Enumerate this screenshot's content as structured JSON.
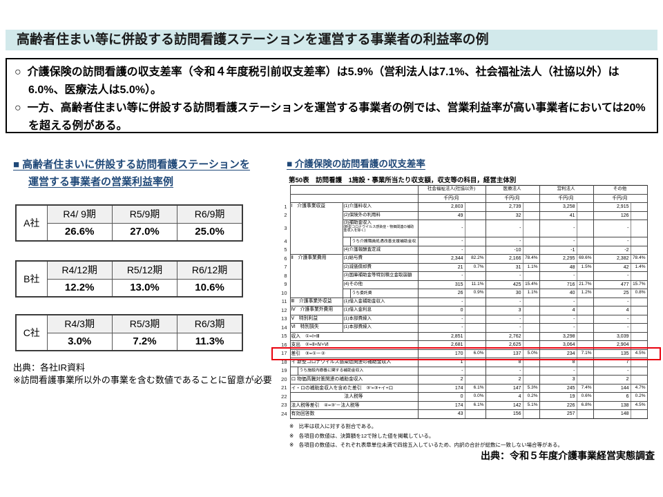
{
  "colors": {
    "title_bar_bg": "#d2e9eb",
    "heading_blue": "#1f4878",
    "highlight_red": "#e8000d"
  },
  "slide": {
    "title": "高齢者住まい等に併設する訪問看護ステーションを運営する事業者の利益率の例",
    "bullet_marker": "○",
    "bullets": [
      "介護保険の訪問看護の収支差率（令和４年度税引前収支差率）は5.9%（営利法人は7.1%、社会福祉法人（社協以外）は6.0%、医療法人は5.0%）。",
      "一方、高齢者住まい等に併設する訪問看護ステーションを運営する事業者の例では、営業利益率が高い事業者においては20%を超える例がある。"
    ]
  },
  "left_panel": {
    "heading_line1": "■ 高齢者住まいに併設する訪問看護ステーションを",
    "heading_line2": "運営する事業者の営業利益率例",
    "tables": [
      {
        "company": "A社",
        "periods": [
          "R4/ 9期",
          "R5/9期",
          "R6/9期"
        ],
        "values": [
          "26.6%",
          "27.0%",
          "25.0%"
        ]
      },
      {
        "company": "B社",
        "periods": [
          "R4/12期",
          "R5/12期",
          "R6/12期"
        ],
        "values": [
          "12.2%",
          "13.0%",
          "10.6%"
        ]
      },
      {
        "company": "C社",
        "periods": [
          "R4/3期",
          "R5/3期",
          "R6/3期"
        ],
        "values": [
          "3.0%",
          "7.2%",
          "11.3%"
        ]
      }
    ],
    "source": "出典：各社IR資料",
    "note": "※訪問看護事業所以外の事業を含む数値であることに留意が必要"
  },
  "right_panel": {
    "heading": "■ 介護保険の訪問看護の収支差率",
    "table_title": "第50表　訪問看護　1施設・事業所当たり収支額，収支等の科目，経営主体別",
    "entity_headers": [
      "社会福祉法人(社協以外)",
      "医療法人",
      "営利法人",
      "その他"
    ],
    "unit_label": "千円/月",
    "highlight_row": 17,
    "rows": [
      {
        "n": 1,
        "cat": "Ⅰ　介護事業収益",
        "catspan": 5,
        "item": "(1)介護料収入",
        "c": [
          [
            "2,803",
            ""
          ],
          [
            "2,739",
            ""
          ],
          [
            "3,258",
            ""
          ],
          [
            "2,915",
            ""
          ]
        ]
      },
      {
        "n": 2,
        "item": "(2)保険外の利用料",
        "c": [
          [
            "49",
            ""
          ],
          [
            "32",
            ""
          ],
          [
            "41",
            ""
          ],
          [
            "126",
            ""
          ]
        ]
      },
      {
        "n": 3,
        "item": "(3)補助金収入",
        "note": "(新型コロナウイルス感染症・物価関連の補助金収入を除く)",
        "tall": true,
        "c": [
          [
            "-",
            ""
          ],
          [
            "-",
            ""
          ],
          [
            "-",
            ""
          ],
          [
            "-",
            ""
          ]
        ]
      },
      {
        "n": 4,
        "item": "うち介護職員処遇改善支援補助金収入",
        "sub": true,
        "c": [
          [
            "-",
            ""
          ],
          [
            "-",
            ""
          ],
          [
            "-",
            ""
          ],
          [
            "-",
            ""
          ]
        ]
      },
      {
        "n": 5,
        "item": "(4)介護報酬査定減",
        "c": [
          [
            "-",
            ""
          ],
          [
            "-10",
            ""
          ],
          [
            "-1",
            ""
          ],
          [
            "-2",
            ""
          ]
        ]
      },
      {
        "n": 6,
        "cat": "Ⅱ　介護事業費用",
        "catspan": 5,
        "item": "(1)給与費",
        "sec": true,
        "c": [
          [
            "2,344",
            "82.2%"
          ],
          [
            "2,166",
            "78.4%"
          ],
          [
            "2,295",
            "69.6%"
          ],
          [
            "2,382",
            "78.4%"
          ]
        ]
      },
      {
        "n": 7,
        "item": "(2)減価償却費",
        "c": [
          [
            "21",
            "0.7%"
          ],
          [
            "31",
            "1.1%"
          ],
          [
            "48",
            "1.5%"
          ],
          [
            "42",
            "1.4%"
          ]
        ]
      },
      {
        "n": 8,
        "item": "(3)国庫補助金等特別積立金取崩額",
        "c": [
          [
            "-",
            ""
          ],
          [
            "-",
            ""
          ],
          [
            "-",
            ""
          ],
          [
            "-",
            ""
          ]
        ]
      },
      {
        "n": 9,
        "item": "(4)その他",
        "c": [
          [
            "315",
            "11.1%"
          ],
          [
            "425",
            "15.4%"
          ],
          [
            "716",
            "21.7%"
          ],
          [
            "477",
            "15.7%"
          ]
        ]
      },
      {
        "n": 10,
        "item": "うち委託費",
        "sub": true,
        "c": [
          [
            "26",
            "0.9%"
          ],
          [
            "30",
            "1.1%"
          ],
          [
            "40",
            "1.2%"
          ],
          [
            "25",
            "0.8%"
          ]
        ]
      },
      {
        "n": 11,
        "cat": "Ⅲ　介護事業外収益",
        "catspan": 1,
        "item": "(1)借入金補助金収入",
        "sec": true,
        "c": [
          [
            "-",
            ""
          ],
          [
            "-",
            ""
          ],
          [
            "-",
            ""
          ],
          [
            "-",
            ""
          ]
        ]
      },
      {
        "n": 12,
        "cat": "Ⅳ　介護事業外費用",
        "catspan": 1,
        "item": "(1)借入金利息",
        "sec": true,
        "c": [
          [
            "0",
            ""
          ],
          [
            "3",
            ""
          ],
          [
            "4",
            ""
          ],
          [
            "4",
            ""
          ]
        ]
      },
      {
        "n": 13,
        "cat": "Ⅴ　特別利益",
        "catspan": 1,
        "item": "(1)本部費繰入",
        "sec": true,
        "c": [
          [
            "-",
            ""
          ],
          [
            "-",
            ""
          ],
          [
            "-",
            ""
          ],
          [
            "-",
            ""
          ]
        ]
      },
      {
        "n": 14,
        "cat": "Ⅵ　特別損失",
        "catspan": 1,
        "item": "(1)本部費繰入",
        "sec": true,
        "c": [
          [
            "-",
            ""
          ],
          [
            "-",
            ""
          ],
          [
            "-",
            ""
          ],
          [
            "-",
            ""
          ]
        ]
      },
      {
        "n": 15,
        "label": "収入　①=Ⅰ+Ⅲ",
        "sec": true,
        "c": [
          [
            "2,851",
            ""
          ],
          [
            "2,762",
            ""
          ],
          [
            "3,298",
            ""
          ],
          [
            "3,039",
            ""
          ]
        ]
      },
      {
        "n": 16,
        "label": "支出　②=Ⅱ+Ⅳ+Ⅵ",
        "c": [
          [
            "2,681",
            ""
          ],
          [
            "2,625",
            ""
          ],
          [
            "3,064",
            ""
          ],
          [
            "2,904",
            ""
          ]
        ]
      },
      {
        "n": 17,
        "label": "差引　③=①－②",
        "c": [
          [
            "170",
            "6.0%"
          ],
          [
            "137",
            "5.0%"
          ],
          [
            "234",
            "7.1%"
          ],
          [
            "135",
            "4.5%"
          ]
        ]
      },
      {
        "n": 18,
        "label": "イ 新型コロナウイルス感染症関連の補助金収入",
        "c": [
          [
            "1",
            ""
          ],
          [
            "8",
            ""
          ],
          [
            "8",
            ""
          ],
          [
            "7",
            ""
          ]
        ]
      },
      {
        "n": 19,
        "label": "うち施設内療養に関する補助金収入",
        "sub": true,
        "c": [
          [
            "-",
            ""
          ],
          [
            "-",
            ""
          ],
          [
            "-",
            ""
          ],
          [
            "-",
            ""
          ]
        ]
      },
      {
        "n": 20,
        "label": "ロ 物価高騰対策関連の補助金収入",
        "c": [
          [
            "2",
            ""
          ],
          [
            "2",
            ""
          ],
          [
            "3",
            ""
          ],
          [
            "2",
            ""
          ]
        ]
      },
      {
        "n": 21,
        "label": "イ・ロの補助金収入を含めた差引　③'=③+イ+ロ",
        "c": [
          [
            "174",
            "6.1%"
          ],
          [
            "147",
            "5.3%"
          ],
          [
            "245",
            "7.4%"
          ],
          [
            "144",
            "4.7%"
          ]
        ]
      },
      {
        "n": 22,
        "label": "法人税等",
        "center": true,
        "sec": true,
        "c": [
          [
            "0",
            "0.0%"
          ],
          [
            "4",
            "0.2%"
          ],
          [
            "19",
            "0.6%"
          ],
          [
            "6",
            "0.2%"
          ]
        ]
      },
      {
        "n": 23,
        "label": "法人税等差引　④=③'－法人税等",
        "c": [
          [
            "174",
            "6.1%"
          ],
          [
            "142",
            "5.1%"
          ],
          [
            "226",
            "6.8%"
          ],
          [
            "138",
            "4.5%"
          ]
        ]
      },
      {
        "n": 24,
        "label": "有効回答数",
        "sec": true,
        "c": [
          [
            "43",
            ""
          ],
          [
            "156",
            ""
          ],
          [
            "257",
            ""
          ],
          [
            "148",
            ""
          ]
        ]
      }
    ],
    "footnotes": [
      "※　比率は収入に対する割合である。",
      "※　各項目の数値は、決算額を12で除した値を掲載している。",
      "※　各項目の数値は、それぞれ表章単位未満で四捨五入しているため、内訳の合計が総数に一致しない場合等がある。"
    ],
    "source": "出典：令和５年度介護事業経営実態調査"
  }
}
